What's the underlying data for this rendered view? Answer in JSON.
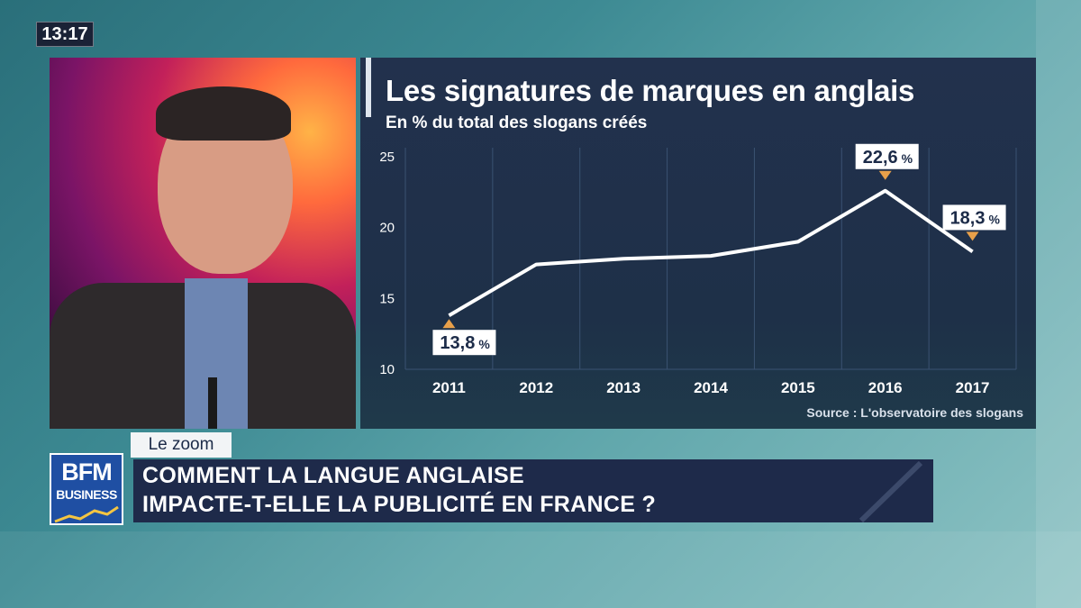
{
  "clock": "13:17",
  "segment_tag": "Le zoom",
  "headline": {
    "line1": "COMMENT LA LANGUE ANGLAISE",
    "line2": "IMPACTE-T-ELLE LA PUBLICITÉ EN FRANCE ?"
  },
  "logo": {
    "line1": "BFM",
    "line2": "BUSINESS"
  },
  "colors": {
    "panel": "#22314d",
    "line": "#ffffff",
    "marker": "#e8a04a",
    "banner": "#1e2a4a"
  },
  "chart_data": {
    "type": "line",
    "title": "Les signatures de marques en anglais",
    "subtitle": "En % du total des slogans créés",
    "source": "Source : L'observatoire des slogans",
    "categories": [
      "2011",
      "2012",
      "2013",
      "2014",
      "2015",
      "2016",
      "2017"
    ],
    "series": [
      {
        "values": [
          13.8,
          17.4,
          17.8,
          18.0,
          19.0,
          22.6,
          18.3
        ]
      }
    ],
    "ylim": [
      10,
      25
    ],
    "yticks": [
      10,
      15,
      20,
      25
    ],
    "grid": true,
    "annotations": [
      {
        "category": "2011",
        "value": "13,8",
        "unit": "%",
        "position": "below"
      },
      {
        "category": "2016",
        "value": "22,6",
        "unit": "%",
        "position": "above"
      },
      {
        "category": "2017",
        "value": "18,3",
        "unit": "%",
        "position": "above"
      }
    ]
  }
}
